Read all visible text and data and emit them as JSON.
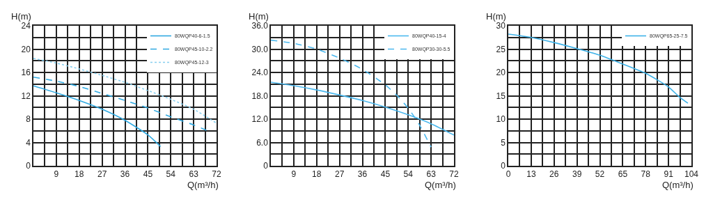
{
  "chart_data": [
    {
      "type": "line",
      "xlabel": "Q(m³/h)",
      "ylabel": "H(m)",
      "xlim": [
        0,
        72
      ],
      "xticks": [
        9,
        18,
        27,
        36,
        45,
        54,
        63,
        72
      ],
      "ylim": [
        0,
        24
      ],
      "yticks": [
        0,
        4,
        8,
        12,
        16,
        20,
        24
      ],
      "grid": true,
      "legend": "top right",
      "x": [
        0,
        9,
        18,
        27,
        36,
        45,
        54,
        63,
        72
      ],
      "series": [
        {
          "name": "80WQP40-6-1.5",
          "color": "#2fa9e1",
          "line_style": "solid",
          "x": [
            0,
            9,
            18,
            27,
            36,
            45,
            50
          ],
          "values": [
            13.7,
            12.5,
            11.2,
            9.7,
            7.8,
            5.3,
            3.3
          ]
        },
        {
          "name": "80WQP45-10-2.2",
          "color": "#2fa9e1",
          "line_style": "dashed",
          "x": [
            0,
            9,
            18,
            27,
            36,
            45,
            54,
            63,
            68
          ],
          "values": [
            15.2,
            14.5,
            13.6,
            12.4,
            11.2,
            9.9,
            8.4,
            7.0,
            6.1
          ]
        },
        {
          "name": "80WQP45-12-3",
          "color": "#86cff0",
          "line_style": "dotted",
          "values": [
            18.4,
            17.6,
            16.6,
            15.5,
            14.3,
            12.9,
            11.4,
            9.7,
            7.3
          ]
        }
      ]
    },
    {
      "type": "line",
      "xlabel": "Q(m³/h)",
      "ylabel": "H(m)",
      "xlim": [
        0,
        72
      ],
      "xticks": [
        9,
        18,
        27,
        36,
        45,
        54,
        63,
        72
      ],
      "ylim": [
        0,
        36
      ],
      "yticks": [
        0,
        {
          "value": 6,
          "label": "6.0"
        },
        {
          "value": 12,
          "label": "12.0"
        },
        {
          "value": 18,
          "label": "18.0"
        },
        {
          "value": 24,
          "label": "24.0"
        },
        {
          "value": 30,
          "label": "30.0"
        },
        {
          "value": 36,
          "label": "36.0"
        }
      ],
      "grid": true,
      "legend": "top right",
      "series": [
        {
          "name": "80WQP40-15-4",
          "color": "#4bb8ee",
          "line_style": "solid",
          "x": [
            0,
            9,
            18,
            27,
            36,
            45,
            54,
            63,
            72
          ],
          "values": [
            21.5,
            20.6,
            19.5,
            18.2,
            16.8,
            15.1,
            13.1,
            10.8,
            7.9
          ]
        },
        {
          "name": "80WQP30-30-5.5",
          "color": "#4bb8ee",
          "line_style": "dashed",
          "x": [
            0,
            9,
            18,
            27,
            36,
            45,
            50,
            54,
            58,
            63
          ],
          "values": [
            32.3,
            31.5,
            30.0,
            27.7,
            24.8,
            20.8,
            17.8,
            14.8,
            11.0,
            4.8
          ]
        }
      ]
    },
    {
      "type": "line",
      "xlabel": "Q(m³/h)",
      "ylabel": "H(m)",
      "xlim": [
        0,
        104
      ],
      "xticks": [
        0,
        13,
        26,
        39,
        52,
        65,
        78,
        91,
        104
      ],
      "ylim": [
        0,
        30
      ],
      "yticks": [
        0,
        5,
        10,
        15,
        20,
        25,
        30
      ],
      "grid": true,
      "legend": "top right",
      "series": [
        {
          "name": "80WQP65-25-7.5",
          "color": "#3db2e8",
          "line_style": "solid",
          "x": [
            0,
            13,
            26,
            39,
            52,
            65,
            78,
            91,
            97,
            102
          ],
          "values": [
            28.2,
            27.5,
            26.4,
            25.1,
            23.7,
            21.8,
            19.8,
            16.9,
            14.8,
            13.4
          ]
        }
      ]
    }
  ]
}
